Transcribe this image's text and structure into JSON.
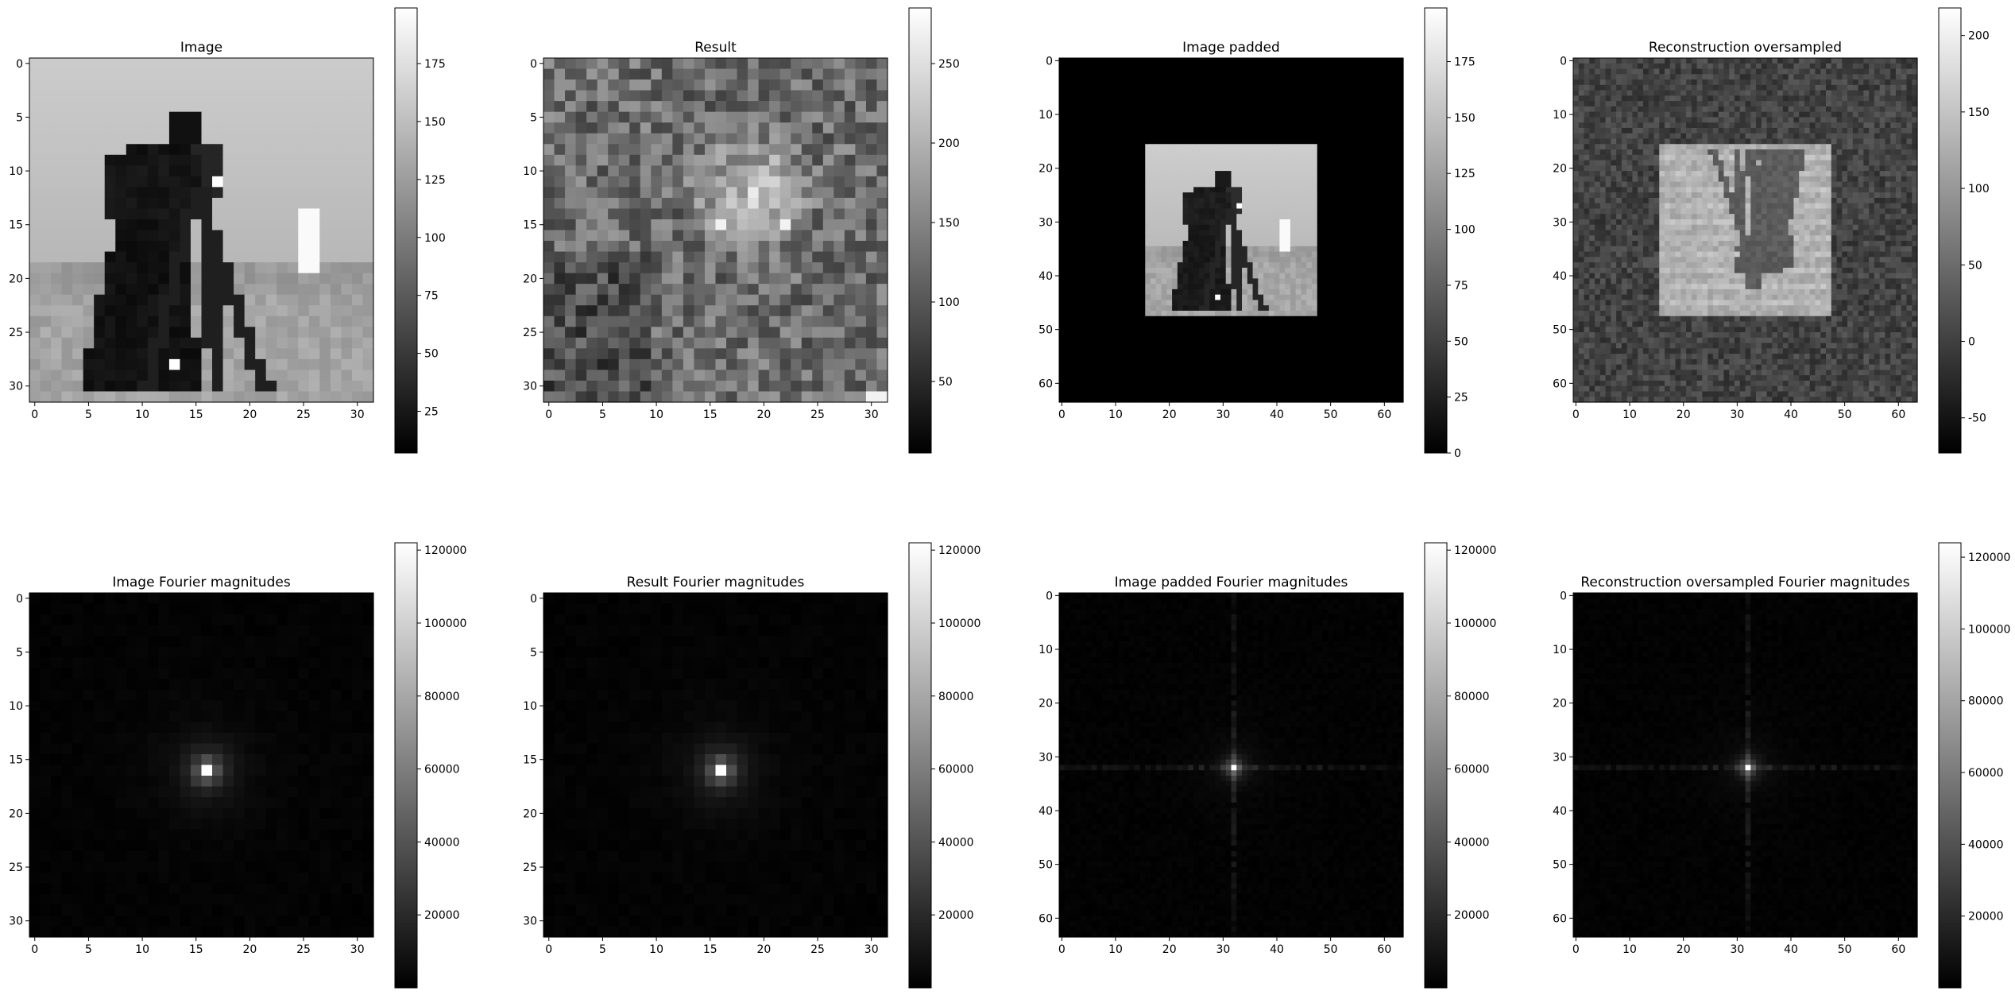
{
  "chart_data": [
    {
      "type": "heatmap",
      "title": "Image",
      "content": "image",
      "x_range": [
        -0.5,
        31.5
      ],
      "y_range": [
        -0.5,
        31.5
      ],
      "x_ticks": [
        0,
        5,
        10,
        15,
        20,
        25,
        30
      ],
      "y_ticks": [
        0,
        5,
        10,
        15,
        20,
        25,
        30
      ],
      "colorbar": {
        "min": 7,
        "max": 199,
        "ticks": [
          25,
          50,
          75,
          100,
          125,
          150,
          175
        ]
      }
    },
    {
      "type": "heatmap",
      "title": "Result",
      "content": "noise",
      "x_range": [
        -0.5,
        31.5
      ],
      "y_range": [
        -0.5,
        31.5
      ],
      "x_ticks": [
        0,
        5,
        10,
        15,
        20,
        25,
        30
      ],
      "y_ticks": [
        0,
        5,
        10,
        15,
        20,
        25,
        30
      ],
      "colorbar": {
        "min": 5,
        "max": 285,
        "ticks": [
          50,
          100,
          150,
          200,
          250
        ]
      }
    },
    {
      "type": "heatmap",
      "title": "Image padded",
      "content": "padded",
      "x_range": [
        -0.5,
        63.5
      ],
      "y_range": [
        -0.5,
        63.5
      ],
      "x_ticks": [
        0,
        10,
        20,
        30,
        40,
        50,
        60
      ],
      "y_ticks": [
        0,
        10,
        20,
        30,
        40,
        50,
        60
      ],
      "colorbar": {
        "min": 0,
        "max": 199,
        "ticks": [
          0,
          25,
          50,
          75,
          100,
          125,
          150,
          175
        ]
      }
    },
    {
      "type": "heatmap",
      "title": "Reconstruction oversampled",
      "content": "recon",
      "x_range": [
        -0.5,
        63.5
      ],
      "y_range": [
        -0.5,
        63.5
      ],
      "x_ticks": [
        0,
        10,
        20,
        30,
        40,
        50,
        60
      ],
      "y_ticks": [
        0,
        10,
        20,
        30,
        40,
        50,
        60
      ],
      "colorbar": {
        "min": -73,
        "max": 218,
        "ticks": [
          -50,
          0,
          50,
          100,
          150,
          200
        ]
      }
    },
    {
      "type": "heatmap",
      "title": "Image Fourier magnitudes",
      "content": "fft",
      "peak": [
        16,
        16
      ],
      "x_range": [
        -0.5,
        31.5
      ],
      "y_range": [
        -0.5,
        31.5
      ],
      "x_ticks": [
        0,
        5,
        10,
        15,
        20,
        25,
        30
      ],
      "y_ticks": [
        0,
        5,
        10,
        15,
        20,
        25,
        30
      ],
      "colorbar": {
        "min": 0,
        "max": 122000,
        "ticks": [
          20000,
          40000,
          60000,
          80000,
          100000,
          120000
        ]
      }
    },
    {
      "type": "heatmap",
      "title": "Result Fourier magnitudes",
      "content": "fft",
      "peak": [
        16,
        16
      ],
      "x_range": [
        -0.5,
        31.5
      ],
      "y_range": [
        -0.5,
        31.5
      ],
      "x_ticks": [
        0,
        5,
        10,
        15,
        20,
        25,
        30
      ],
      "y_ticks": [
        0,
        5,
        10,
        15,
        20,
        25,
        30
      ],
      "colorbar": {
        "min": 0,
        "max": 122000,
        "ticks": [
          20000,
          40000,
          60000,
          80000,
          100000,
          120000
        ]
      }
    },
    {
      "type": "heatmap",
      "title": "Image padded Fourier magnitudes",
      "content": "fft",
      "peak": [
        32,
        32
      ],
      "x_range": [
        -0.5,
        63.5
      ],
      "y_range": [
        -0.5,
        63.5
      ],
      "x_ticks": [
        0,
        10,
        20,
        30,
        40,
        50,
        60
      ],
      "y_ticks": [
        0,
        10,
        20,
        30,
        40,
        50,
        60
      ],
      "colorbar": {
        "min": 0,
        "max": 122000,
        "ticks": [
          20000,
          40000,
          60000,
          80000,
          100000,
          120000
        ]
      }
    },
    {
      "type": "heatmap",
      "title": "Reconstruction oversampled Fourier magnitudes",
      "content": "fft",
      "peak": [
        32,
        32
      ],
      "x_range": [
        -0.5,
        63.5
      ],
      "y_range": [
        -0.5,
        63.5
      ],
      "x_ticks": [
        0,
        10,
        20,
        30,
        40,
        50,
        60
      ],
      "y_ticks": [
        0,
        10,
        20,
        30,
        40,
        50,
        60
      ],
      "colorbar": {
        "min": 0,
        "max": 124000,
        "ticks": [
          20000,
          40000,
          60000,
          80000,
          100000,
          120000
        ]
      }
    }
  ]
}
